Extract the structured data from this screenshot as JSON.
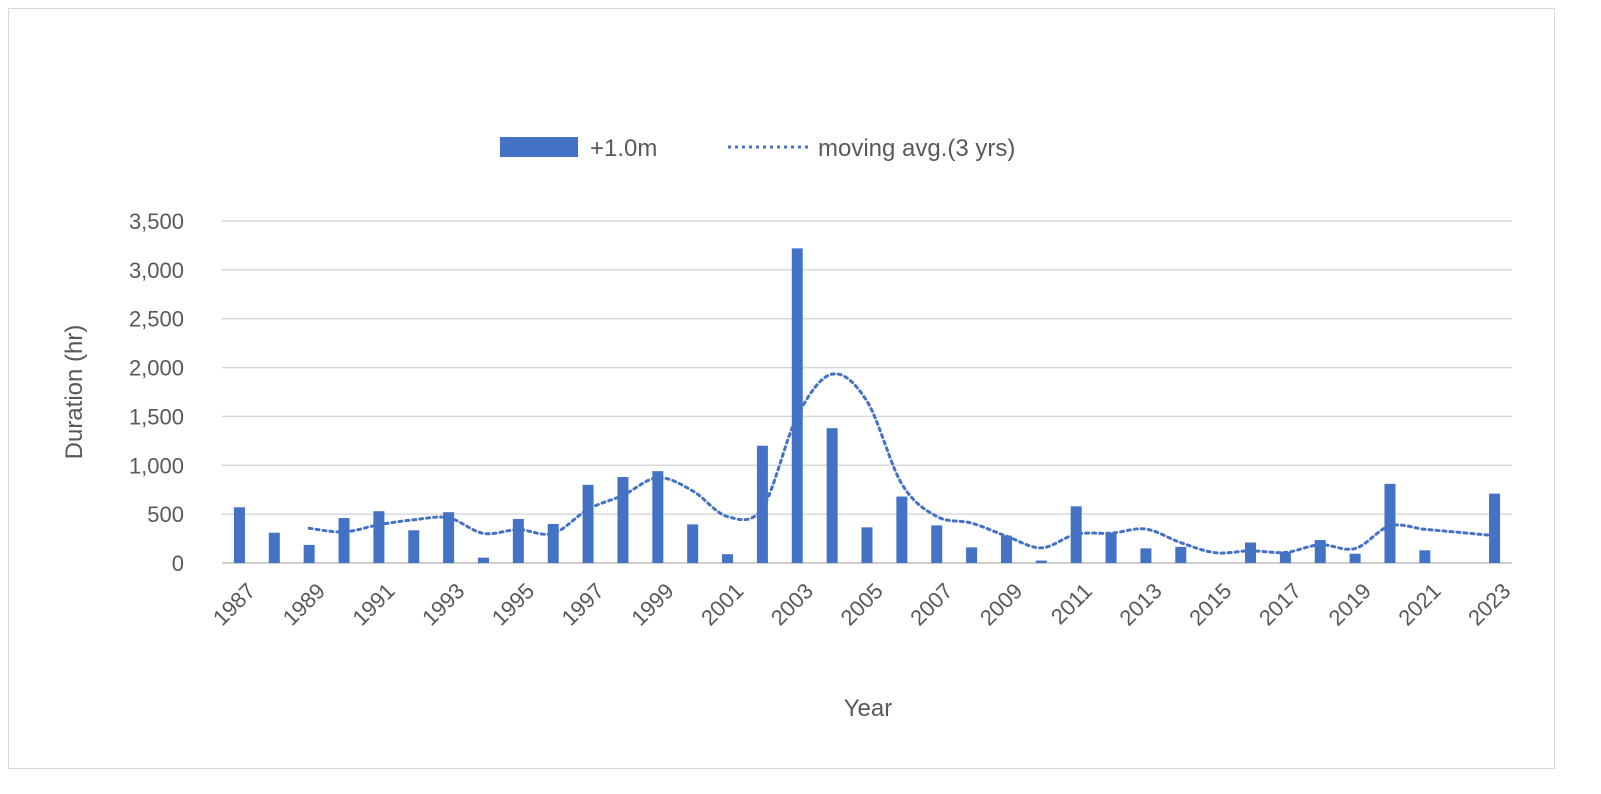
{
  "chart_data": {
    "type": "bar",
    "title": "",
    "xlabel": "Year",
    "ylabel": "Duration (hr)",
    "ylim": [
      0,
      3500
    ],
    "yticks": [
      0,
      500,
      1000,
      1500,
      2000,
      2500,
      3000,
      3500
    ],
    "ytick_labels": [
      "0",
      "500",
      "1,000",
      "1,500",
      "2,000",
      "2,500",
      "3,000",
      "3,500"
    ],
    "grid": true,
    "legend_position": "top",
    "colors": {
      "bar": "#4472c4",
      "line": "#4472c4",
      "grid": "#d9d9d9",
      "text": "#595959"
    },
    "categories": [
      "1987",
      "1988",
      "1989",
      "1990",
      "1991",
      "1992",
      "1993",
      "1994",
      "1995",
      "1996",
      "1997",
      "1998",
      "1999",
      "2000",
      "2001",
      "2002",
      "2003",
      "2004",
      "2005",
      "2006",
      "2007",
      "2008",
      "2009",
      "2010",
      "2011",
      "2012",
      "2013",
      "2014",
      "2015",
      "2016",
      "2017",
      "2018",
      "2019",
      "2020",
      "2021",
      "2022",
      "2023"
    ],
    "x_tick_labels": [
      "1987",
      "1989",
      "1991",
      "1993",
      "1995",
      "1997",
      "1999",
      "2001",
      "2003",
      "2005",
      "2007",
      "2009",
      "2011",
      "2013",
      "2015",
      "2017",
      "2019",
      "2021",
      "2023"
    ],
    "series": [
      {
        "name": "+1.0m",
        "type": "bar",
        "values": [
          570,
          310,
          185,
          460,
          530,
          335,
          520,
          55,
          450,
          400,
          800,
          880,
          940,
          395,
          90,
          1200,
          3220,
          1380,
          365,
          680,
          385,
          160,
          280,
          25,
          580,
          310,
          150,
          165,
          0,
          210,
          115,
          235,
          95,
          810,
          130,
          0,
          710
        ]
      },
      {
        "name": "moving avg.(3 yrs)",
        "type": "line",
        "style": "dotted",
        "values": [
          null,
          null,
          355,
          318,
          392,
          442,
          462,
          303,
          342,
          302,
          550,
          693,
          873,
          738,
          475,
          562,
          1503,
          1933,
          1655,
          808,
          477,
          408,
          275,
          155,
          295,
          305,
          347,
          208,
          105,
          125,
          108,
          187,
          148,
          380,
          345,
          313,
          280
        ]
      }
    ]
  }
}
